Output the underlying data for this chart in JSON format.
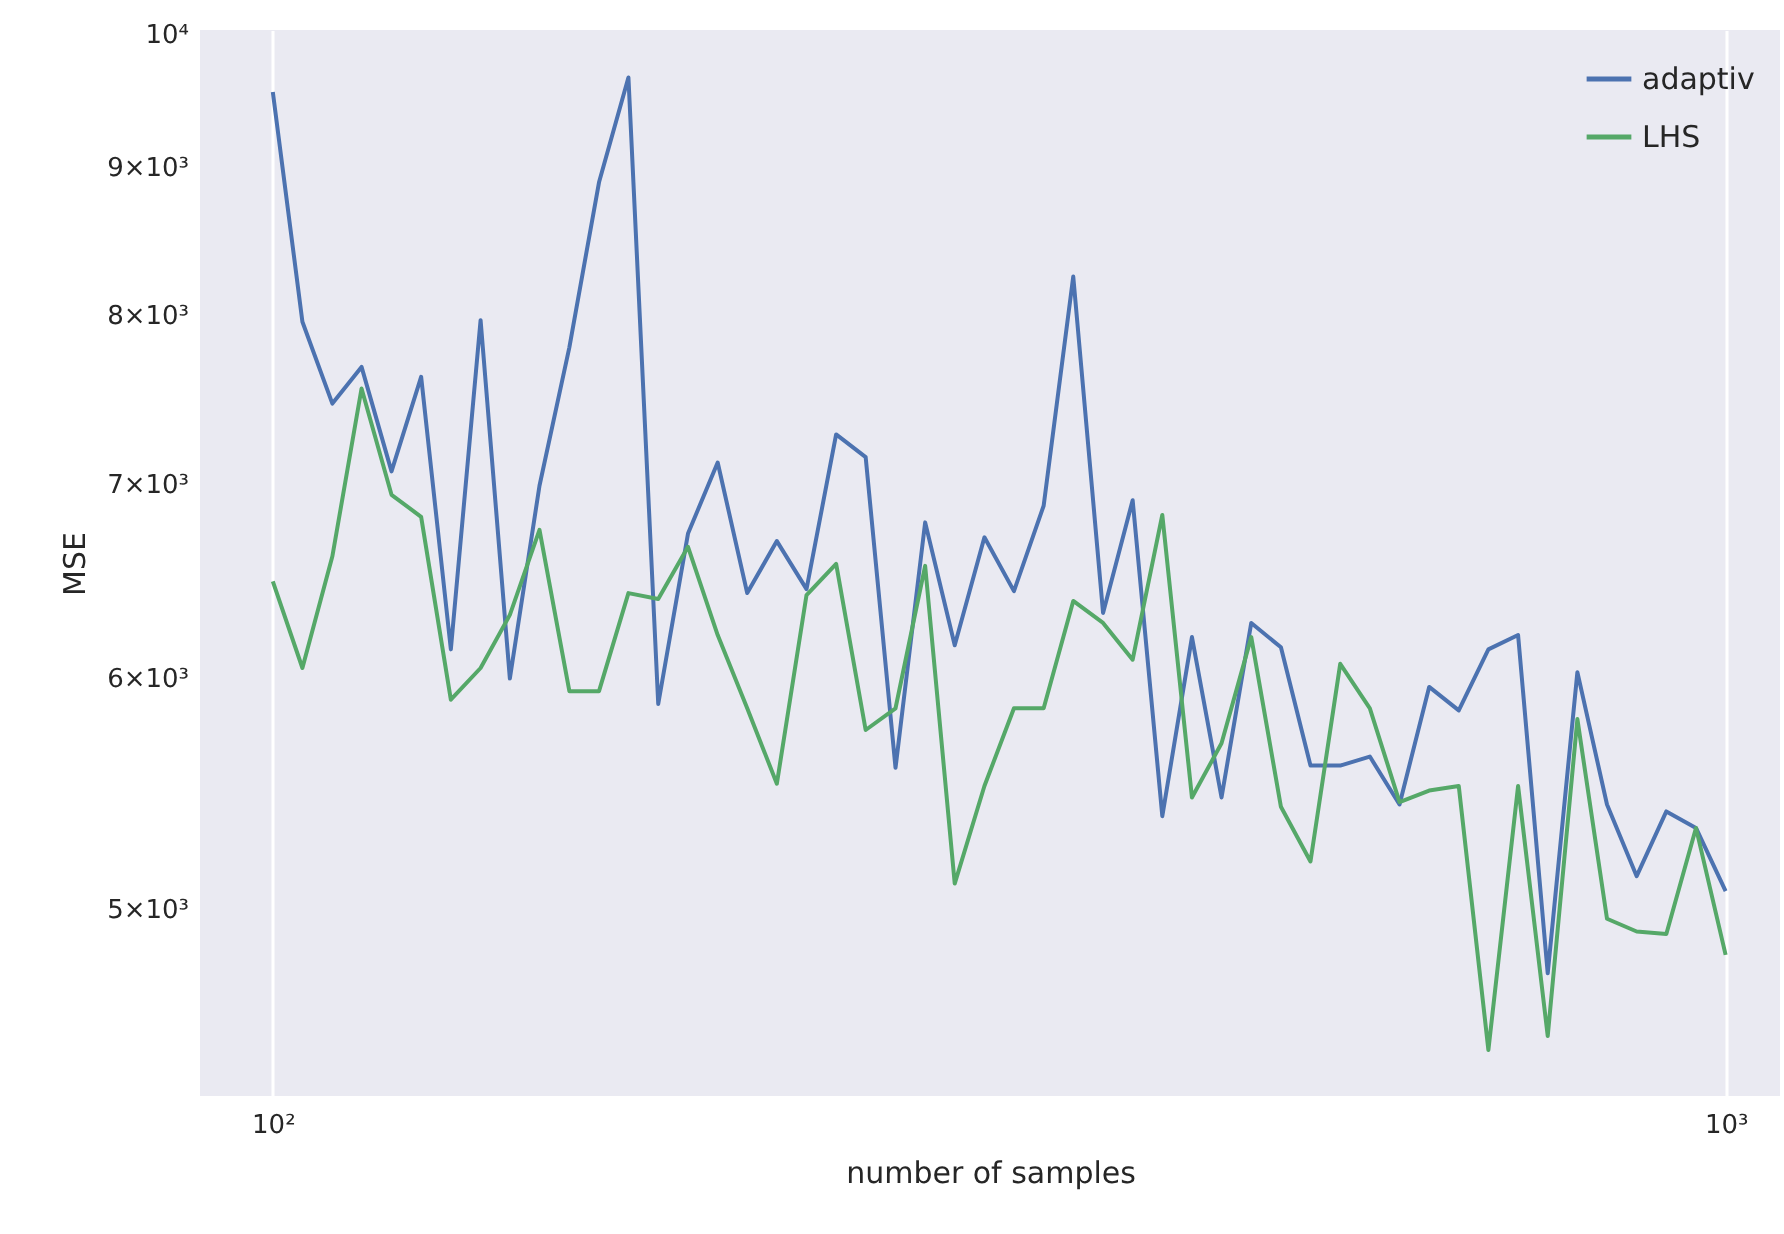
{
  "chart_data": {
    "type": "line",
    "xlabel": "number of samples",
    "ylabel": "MSE",
    "x": [
      100,
      104.8,
      109.9,
      115.1,
      120.7,
      126.5,
      132.6,
      139.0,
      145.6,
      152.6,
      160.0,
      167.7,
      175.7,
      184.2,
      193.1,
      202.4,
      212.1,
      222.3,
      233.0,
      244.2,
      255.9,
      268.3,
      281.2,
      294.7,
      308.9,
      323.7,
      339.3,
      355.6,
      372.8,
      390.7,
      409.5,
      429.2,
      449.8,
      471.5,
      494.2,
      517.9,
      542.9,
      569.0,
      596.4,
      625.1,
      655.1,
      686.6,
      719.7,
      754.3,
      790.6,
      828.6,
      868.5,
      910.3,
      954.1,
      1000
    ],
    "series": [
      {
        "name": "adaptiv",
        "color": "#4c72b0",
        "values": [
          9550,
          7960,
          7460,
          7680,
          7070,
          7620,
          6140,
          7970,
          6000,
          6990,
          7800,
          8890,
          9660,
          5880,
          6730,
          7120,
          6420,
          6690,
          6440,
          7280,
          7150,
          5590,
          6790,
          6160,
          6710,
          6430,
          6880,
          8250,
          6320,
          6910,
          5380,
          6200,
          5460,
          6270,
          6150,
          5600,
          5600,
          5640,
          5430,
          5960,
          5850,
          6140,
          6210,
          4750,
          6030,
          5430,
          5130,
          5400,
          5330,
          5070
        ]
      },
      {
        "name": "LHS",
        "color": "#55a868",
        "values": [
          6480,
          6050,
          6610,
          7550,
          6940,
          6820,
          5900,
          6050,
          6310,
          6750,
          5940,
          5940,
          6420,
          6390,
          6660,
          6210,
          5860,
          5520,
          6410,
          6570,
          5760,
          5860,
          6560,
          5100,
          5510,
          5860,
          5860,
          6380,
          6270,
          6090,
          6830,
          5460,
          5700,
          6200,
          5420,
          5190,
          6070,
          5860,
          5440,
          5490,
          5510,
          4470,
          5510,
          4520,
          5810,
          4960,
          4910,
          4900,
          5330,
          4820
        ]
      }
    ],
    "log": "xy",
    "xlim": [
      89.1,
      1090
    ],
    "ylim": [
      4310,
      10030
    ],
    "xticks": [
      {
        "value": 100,
        "label": "10²"
      },
      {
        "value": 1000,
        "label": "10³"
      }
    ],
    "yticks": [
      {
        "value": 5000,
        "label": "5×10³"
      },
      {
        "value": 6000,
        "label": "6×10³"
      },
      {
        "value": 7000,
        "label": "7×10³"
      },
      {
        "value": 8000,
        "label": "8×10³"
      },
      {
        "value": 9000,
        "label": "9×10³"
      },
      {
        "value": 10000,
        "label": "10⁴"
      }
    ],
    "grid": "x",
    "legend": "top right"
  }
}
